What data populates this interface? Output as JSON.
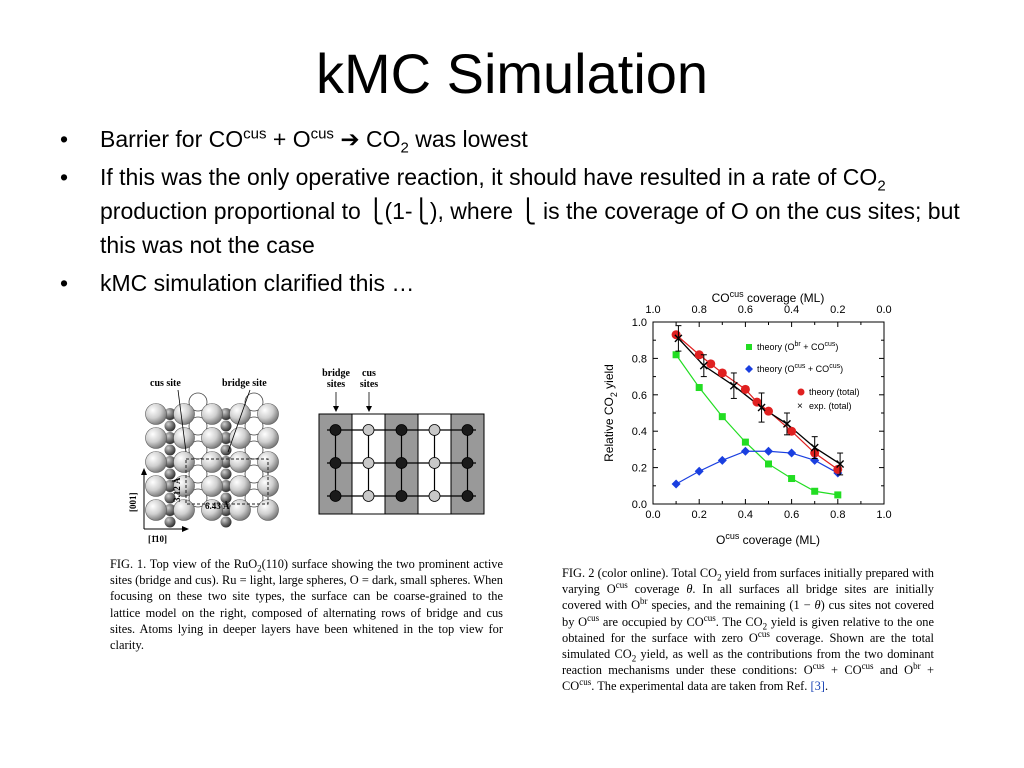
{
  "slide": {
    "title": "kMC Simulation",
    "bullets": [
      {
        "t1": "Barrier for CO",
        "s1": "cus",
        "t2": " + O",
        "s2": "cus",
        "t3": " ",
        "arrow": "➔",
        "t4": " CO",
        "sub1": "2",
        "t5": " was lowest"
      },
      {
        "t1": "If this was the only operative reaction, it should have resulted in a rate of CO",
        "sub1": "2",
        "t2": " production proportional to ",
        "box": "⎩",
        "t3": "(1-",
        "t4": "), where ",
        "t5": " is the coverage of O on the cus sites; but this was not the case"
      },
      {
        "t1": "kMC simulation clarified this …"
      }
    ]
  },
  "figure1": {
    "labels": {
      "cus_site": "cus site",
      "bridge_site": "bridge site",
      "bridge_sites_1": "bridge",
      "bridge_sites_2": "sites",
      "cus_sites_1": "cus",
      "cus_sites_2": "sites",
      "dim_vertical": "3.12 Å",
      "dim_horizontal": "6.43 Å",
      "axis_001": "[001]",
      "axis_110": "[1̄10]"
    },
    "caption": {
      "p1": "FIG. 1.   Top view of the RuO",
      "p1sub": "2",
      "p2": "(110) surface showing the two prominent active sites (bridge and cus). Ru = light, large spheres, O = dark, small spheres. When focusing on these two site types, the surface can be coarse-grained to the lattice model on the right, composed of alternating rows of bridge and cus sites. Atoms lying in deeper layers have been whitened in the top view for clarity."
    }
  },
  "figure2": {
    "caption": {
      "a": "FIG. 2 (color online).   Total CO",
      "b": " yield from surfaces initially prepared with varying O",
      "c": " coverage ",
      "theta": "θ",
      "d": ". In all surfaces all bridge sites are initially covered with O",
      "e": " species, and the remaining (1 − ",
      "f": ") cus sites not covered by O",
      "g": " are occupied by CO",
      "h": ". The CO",
      "i": " yield is given relative to the one obtained for the surface with zero O",
      "j": " coverage. Shown are the total simulated CO",
      "k": " yield, as well as the contributions from the two dominant reaction mechanisms under these conditions: O",
      "l": " + CO",
      "m": " and O",
      "n": " + CO",
      "o": ". The experimental data are taken from Ref. ",
      "ref": "[3]",
      "p": ".",
      "cus": "cus",
      "br": "br",
      "two": "2"
    }
  },
  "chart_data": {
    "type": "scatter",
    "xlabel": "O^cus coverage (ML)",
    "xlabel_main": "O",
    "xlabel_sup": "cus",
    "xlabel_rest": " coverage (ML)",
    "top_xlabel_main": "CO",
    "top_xlabel_sup": "cus",
    "top_xlabel_rest": " coverage (ML)",
    "ylabel_main": "Relative CO",
    "ylabel_sub": "2",
    "ylabel_rest": " yield",
    "xlim": [
      0.0,
      1.0
    ],
    "ylim": [
      0.0,
      1.0
    ],
    "x_ticks": [
      "0.0",
      "0.2",
      "0.4",
      "0.6",
      "0.8",
      "1.0"
    ],
    "top_ticks": [
      "1.0",
      "0.8",
      "0.6",
      "0.4",
      "0.2",
      "0.0"
    ],
    "y_ticks": [
      "0.0",
      "0.2",
      "0.4",
      "0.6",
      "0.8",
      "1.0"
    ],
    "legend": {
      "br": {
        "pre": "theory (O",
        "s1": "br",
        "mid": " + CO",
        "s2": "cus",
        "post": ")"
      },
      "cus": {
        "pre": "theory (O",
        "s1": "cus",
        "mid": " + CO",
        "s2": "cus",
        "post": ")"
      },
      "total": "theory (total)",
      "exp": "exp. (total)"
    },
    "series": [
      {
        "key": "br",
        "color": "#22dd22",
        "marker": "square",
        "x": [
          0.1,
          0.2,
          0.3,
          0.4,
          0.5,
          0.6,
          0.7,
          0.8
        ],
        "y": [
          0.82,
          0.64,
          0.48,
          0.34,
          0.22,
          0.14,
          0.07,
          0.05
        ]
      },
      {
        "key": "cus",
        "color": "#1a3fe0",
        "marker": "diamond",
        "x": [
          0.1,
          0.2,
          0.3,
          0.4,
          0.5,
          0.6,
          0.7,
          0.8
        ],
        "y": [
          0.11,
          0.18,
          0.24,
          0.29,
          0.29,
          0.28,
          0.24,
          0.17
        ]
      },
      {
        "key": "total",
        "color": "#e02020",
        "marker": "circle",
        "x": [
          0.1,
          0.2,
          0.25,
          0.3,
          0.4,
          0.45,
          0.5,
          0.6,
          0.7,
          0.8
        ],
        "y": [
          0.93,
          0.82,
          0.77,
          0.72,
          0.63,
          0.56,
          0.51,
          0.4,
          0.28,
          0.19
        ]
      },
      {
        "key": "exp",
        "color": "#000000",
        "marker": "x",
        "x": [
          0.11,
          0.22,
          0.35,
          0.47,
          0.58,
          0.7,
          0.81
        ],
        "y": [
          0.91,
          0.76,
          0.65,
          0.53,
          0.44,
          0.31,
          0.22
        ],
        "err": [
          0.07,
          0.06,
          0.07,
          0.08,
          0.06,
          0.06,
          0.06
        ]
      }
    ]
  }
}
